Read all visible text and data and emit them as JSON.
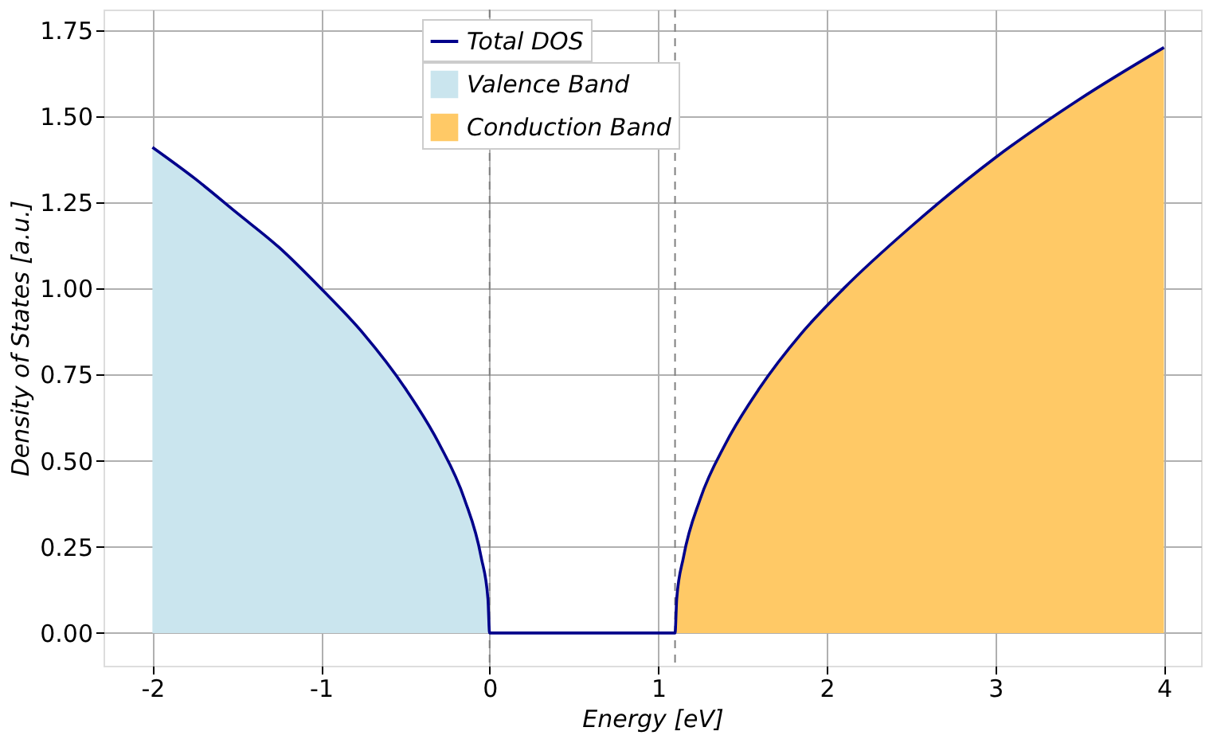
{
  "chart_data": {
    "type": "line",
    "xlabel": "Energy [eV]",
    "ylabel": "Density of States [a.u.]",
    "xlim": [
      -2.29,
      4.22
    ],
    "ylim": [
      -0.095,
      1.81
    ],
    "xticks": [
      -2,
      -1,
      0,
      1,
      2,
      3,
      4
    ],
    "yticks": [
      {
        "value": 0,
        "label": "0.00"
      },
      {
        "value": 0.25,
        "label": "0.25"
      },
      {
        "value": 0.5,
        "label": "0.50"
      },
      {
        "value": 0.75,
        "label": "0.75"
      },
      {
        "value": 1,
        "label": "1.00"
      },
      {
        "value": 1.25,
        "label": "1.25"
      },
      {
        "value": 1.5,
        "label": "1.50"
      },
      {
        "value": 1.75,
        "label": "1.75"
      }
    ],
    "grid": true,
    "legend": "top",
    "line_style": "solid",
    "marker": "none",
    "ref_lines": [
      {
        "axis": "x",
        "value": 0,
        "color": "#808080",
        "line_style": "dashed"
      },
      {
        "axis": "x",
        "value": 1.1,
        "color": "#808080",
        "line_style": "dashed"
      }
    ],
    "series": [
      {
        "name": "Total DOS",
        "color": "#00008b",
        "x": [
          -2,
          -1.75,
          -1.5,
          -1.25,
          -1,
          -0.75,
          -0.5,
          -0.3,
          -0.15,
          -0.05,
          -0.01,
          0,
          1.1,
          1.11,
          1.15,
          1.25,
          1.4,
          1.6,
          1.85,
          2.1,
          2.5,
          3,
          3.5,
          4
        ],
        "values": [
          1.41,
          1.32,
          1.22,
          1.12,
          1.0,
          0.87,
          0.71,
          0.55,
          0.39,
          0.22,
          0.1,
          0,
          0,
          0.1,
          0.22,
          0.39,
          0.55,
          0.71,
          0.87,
          1.0,
          1.18,
          1.38,
          1.55,
          1.7
        ]
      },
      {
        "name": "Valence Band",
        "type": "area",
        "color": "#cae5ee",
        "x": [
          -2,
          -1.75,
          -1.5,
          -1.25,
          -1,
          -0.75,
          -0.5,
          -0.3,
          -0.15,
          -0.05,
          -0.01,
          0
        ],
        "values": [
          1.41,
          1.32,
          1.22,
          1.12,
          1.0,
          0.87,
          0.71,
          0.55,
          0.39,
          0.22,
          0.1,
          0
        ]
      },
      {
        "name": "Conduction Band",
        "type": "area",
        "color": "#ffc966",
        "x": [
          1.1,
          1.11,
          1.15,
          1.25,
          1.4,
          1.6,
          1.85,
          2.1,
          2.5,
          3,
          3.5,
          4
        ],
        "values": [
          0,
          0.1,
          0.22,
          0.39,
          0.55,
          0.71,
          0.87,
          1.0,
          1.18,
          1.38,
          1.55,
          1.7
        ]
      }
    ]
  }
}
